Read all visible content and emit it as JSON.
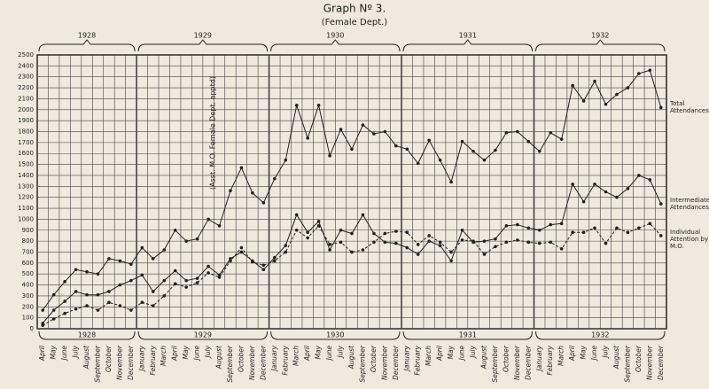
{
  "chart_data": {
    "type": "line",
    "title": "Graph Nº 3.",
    "subtitle": "(Female Dept.)",
    "annotation": "(Asst. M.O. Female Dept. apptd)",
    "years": [
      "1928",
      "1929",
      "1930",
      "1931",
      "1932"
    ],
    "categories": [
      "April",
      "May",
      "June",
      "July",
      "August",
      "September",
      "October",
      "November",
      "December",
      "January",
      "February",
      "March",
      "April",
      "May",
      "June",
      "July",
      "August",
      "September",
      "October",
      "November",
      "December",
      "January",
      "February",
      "March",
      "April",
      "May",
      "June",
      "July",
      "August",
      "September",
      "October",
      "November",
      "December",
      "January",
      "February",
      "March",
      "April",
      "May",
      "June",
      "July",
      "August",
      "September",
      "October",
      "November",
      "December",
      "January",
      "February",
      "March",
      "April",
      "May",
      "June",
      "July",
      "August",
      "September",
      "October",
      "November",
      "December"
    ],
    "series": [
      {
        "name": "Total Attendances",
        "color": "#222",
        "dash": false,
        "values": [
          170,
          310,
          430,
          540,
          520,
          500,
          640,
          620,
          590,
          740,
          640,
          720,
          900,
          800,
          820,
          1000,
          940,
          1260,
          1470,
          1240,
          1150,
          1370,
          1540,
          2040,
          1740,
          2040,
          1580,
          1820,
          1640,
          1860,
          1780,
          1800,
          1670,
          1640,
          1510,
          1720,
          1540,
          1340,
          1710,
          1620,
          1540,
          1630,
          1790,
          1800,
          1710,
          1620,
          1790,
          1730,
          2220,
          2080,
          2260,
          2050,
          2140,
          2200,
          2330,
          2360,
          2020
        ]
      },
      {
        "name": "Intermediate Attendances",
        "color": "#222",
        "dash": false,
        "values": [
          50,
          170,
          250,
          340,
          310,
          310,
          340,
          400,
          440,
          490,
          340,
          440,
          530,
          440,
          460,
          570,
          490,
          640,
          700,
          620,
          540,
          650,
          760,
          1040,
          880,
          980,
          720,
          900,
          870,
          1040,
          870,
          790,
          780,
          740,
          680,
          800,
          760,
          620,
          900,
          790,
          800,
          820,
          940,
          950,
          920,
          900,
          950,
          960,
          1320,
          1160,
          1320,
          1250,
          1200,
          1280,
          1400,
          1360,
          1140
        ]
      },
      {
        "name": "Individual Attention by M.O.",
        "color": "#222",
        "dash": true,
        "values": [
          30,
          90,
          140,
          180,
          210,
          170,
          240,
          210,
          170,
          240,
          210,
          300,
          410,
          380,
          420,
          510,
          470,
          620,
          740,
          610,
          580,
          620,
          700,
          900,
          830,
          940,
          770,
          790,
          700,
          720,
          790,
          870,
          890,
          880,
          770,
          850,
          790,
          700,
          810,
          800,
          680,
          750,
          790,
          810,
          790,
          780,
          790,
          730,
          880,
          880,
          920,
          780,
          920,
          880,
          920,
          960,
          850
        ]
      }
    ],
    "ylim": [
      0,
      2500
    ],
    "yticks": [
      0,
      100,
      200,
      300,
      400,
      500,
      600,
      700,
      800,
      900,
      1000,
      1100,
      1200,
      1300,
      1400,
      1500,
      1600,
      1700,
      1800,
      1900,
      2000,
      2100,
      2200,
      2300,
      2400,
      2500
    ],
    "grid": true
  }
}
